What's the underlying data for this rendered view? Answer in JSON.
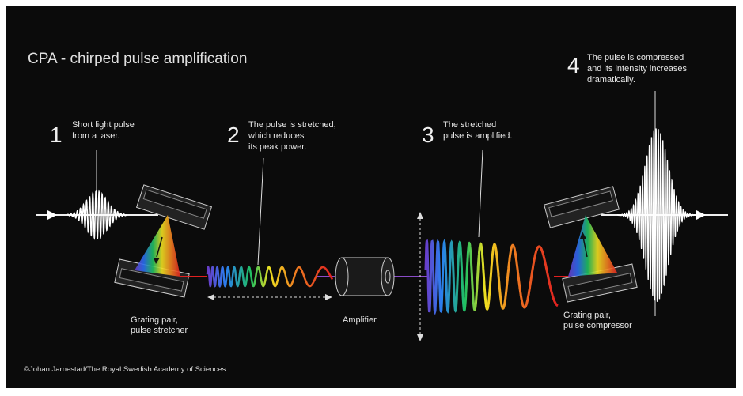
{
  "title": "CPA - chirped pulse amplification",
  "steps": [
    {
      "number": "1",
      "lines": [
        "Short light pulse",
        "from a laser."
      ]
    },
    {
      "number": "2",
      "lines": [
        "The pulse is stretched,",
        "which reduces",
        "its peak power."
      ]
    },
    {
      "number": "3",
      "lines": [
        "The stretched",
        "pulse is amplified."
      ]
    },
    {
      "number": "4",
      "lines": [
        "The pulse is compressed",
        "and its intensity increases",
        "dramatically."
      ]
    }
  ],
  "labels": [
    {
      "lines": [
        "Grating pair,",
        "pulse stretcher"
      ]
    },
    {
      "lines": [
        "Amplifier"
      ]
    },
    {
      "lines": [
        "Grating pair,",
        "pulse compressor"
      ]
    }
  ],
  "credit": "©Johan Jarnestad/The Royal Swedish Academy of Sciences"
}
